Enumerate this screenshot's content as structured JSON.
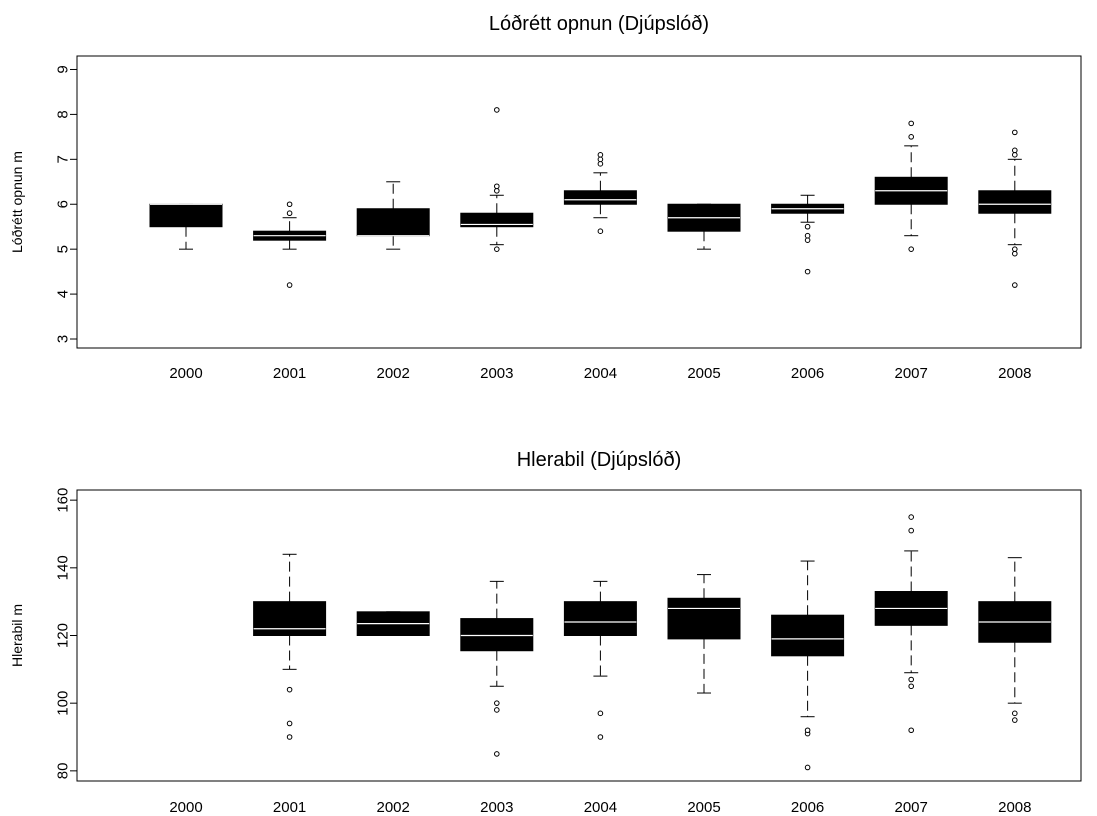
{
  "chart_data": [
    {
      "type": "box",
      "title": "Lóðrétt opnun (Djúpslóð)",
      "ylabel": "Lóðrétt opnun m",
      "xlabel": "",
      "ylim": [
        2.8,
        9.3
      ],
      "yticks": [
        3,
        4,
        5,
        6,
        7,
        8,
        9
      ],
      "categories": [
        "2000",
        "2001",
        "2002",
        "2003",
        "2004",
        "2005",
        "2006",
        "2007",
        "2008"
      ],
      "boxes": [
        {
          "whisker_low": 5.0,
          "q1": 5.5,
          "median": 6.0,
          "q3": 6.0,
          "whisker_high": 6.0,
          "outliers": []
        },
        {
          "whisker_low": 5.0,
          "q1": 5.2,
          "median": 5.3,
          "q3": 5.4,
          "whisker_high": 5.7,
          "outliers": [
            4.2,
            5.8,
            6.0
          ]
        },
        {
          "whisker_low": 5.0,
          "q1": 5.3,
          "median": 5.3,
          "q3": 5.9,
          "whisker_high": 6.5,
          "outliers": []
        },
        {
          "whisker_low": 5.1,
          "q1": 5.5,
          "median": 5.55,
          "q3": 5.8,
          "whisker_high": 6.2,
          "outliers": [
            5.0,
            6.3,
            6.4,
            8.1
          ]
        },
        {
          "whisker_low": 5.7,
          "q1": 6.0,
          "median": 6.1,
          "q3": 6.3,
          "whisker_high": 6.7,
          "outliers": [
            5.4,
            6.9,
            7.0,
            7.1
          ]
        },
        {
          "whisker_low": 5.0,
          "q1": 5.4,
          "median": 5.7,
          "q3": 6.0,
          "whisker_high": 6.0,
          "outliers": []
        },
        {
          "whisker_low": 5.6,
          "q1": 5.8,
          "median": 5.9,
          "q3": 6.0,
          "whisker_high": 6.2,
          "outliers": [
            4.5,
            5.2,
            5.3,
            5.5
          ]
        },
        {
          "whisker_low": 5.3,
          "q1": 6.0,
          "median": 6.3,
          "q3": 6.6,
          "whisker_high": 7.3,
          "outliers": [
            5.0,
            7.5,
            7.8
          ]
        },
        {
          "whisker_low": 5.1,
          "q1": 5.8,
          "median": 6.0,
          "q3": 6.3,
          "whisker_high": 7.0,
          "outliers": [
            4.2,
            4.9,
            5.0,
            7.1,
            7.2,
            7.6
          ]
        }
      ]
    },
    {
      "type": "box",
      "title": "Hlerabil (Djúpslóð)",
      "ylabel": "Hlerabil m",
      "xlabel": "",
      "ylim": [
        77,
        163
      ],
      "yticks": [
        80,
        100,
        120,
        140,
        160
      ],
      "categories": [
        "2000",
        "2001",
        "2002",
        "2003",
        "2004",
        "2005",
        "2006",
        "2007",
        "2008"
      ],
      "boxes": [
        null,
        {
          "whisker_low": 110,
          "q1": 120,
          "median": 122,
          "q3": 130,
          "whisker_high": 144,
          "outliers": [
            90,
            94,
            104
          ]
        },
        {
          "whisker_low": 120,
          "q1": 120,
          "median": 123.5,
          "q3": 127,
          "whisker_high": 127,
          "outliers": []
        },
        {
          "whisker_low": 105,
          "q1": 115.5,
          "median": 120,
          "q3": 125,
          "whisker_high": 136,
          "outliers": [
            85,
            98,
            100
          ]
        },
        {
          "whisker_low": 108,
          "q1": 120,
          "median": 124,
          "q3": 130,
          "whisker_high": 136,
          "outliers": [
            90,
            97
          ]
        },
        {
          "whisker_low": 103,
          "q1": 119,
          "median": 128,
          "q3": 131,
          "whisker_high": 138,
          "outliers": []
        },
        {
          "whisker_low": 96,
          "q1": 114,
          "median": 119,
          "q3": 126,
          "whisker_high": 142,
          "outliers": [
            81,
            91,
            92
          ]
        },
        {
          "whisker_low": 109,
          "q1": 123,
          "median": 128,
          "q3": 133,
          "whisker_high": 145,
          "outliers": [
            92,
            105,
            107,
            151,
            155
          ]
        },
        {
          "whisker_low": 100,
          "q1": 118,
          "median": 124,
          "q3": 130,
          "whisker_high": 143,
          "outliers": [
            95,
            97
          ]
        }
      ]
    }
  ]
}
